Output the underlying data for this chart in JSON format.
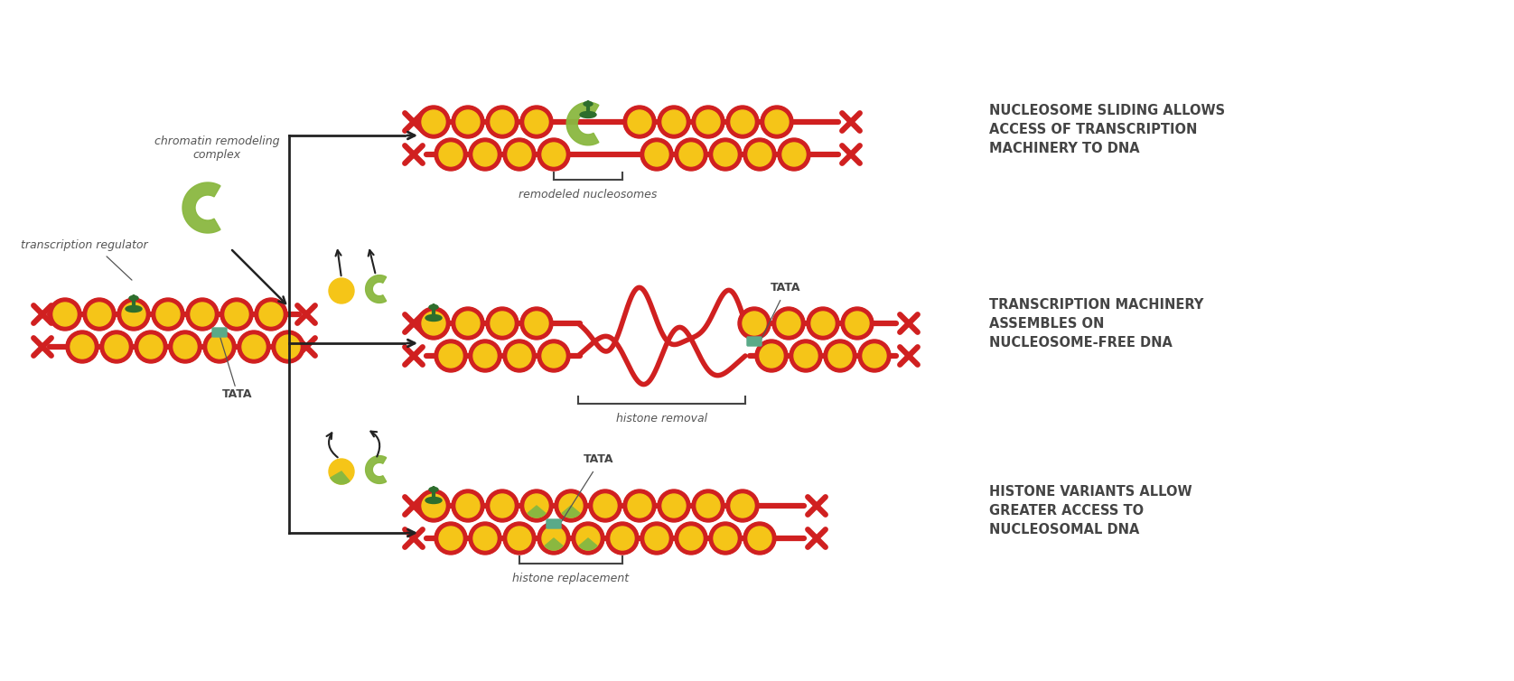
{
  "bg_color": "#ffffff",
  "red": "#d02020",
  "yellow": "#f5c518",
  "green": "#8ab840",
  "dark_green": "#2d6e2d",
  "teal": "#5aaa88",
  "text_gray": "#555555",
  "label_dark": "#444444",
  "arrow_color": "#222222",
  "text1": "NUCLEOSOME SLIDING ALLOWS\nACCESS OF TRANSCRIPTION\nMACHINERY TO DNA",
  "text2": "TRANSCRIPTION MACHINERY\nASSEMBLES ON\nNUCLEOSOME-FREE DNA",
  "text3": "HISTONE VARIANTS ALLOW\nGREATER ACCESS TO\nNUCLEOSOMAL DNA",
  "label_remodeled": "remodeled nucleosomes",
  "label_histone_removal": "histone removal",
  "label_histone_replacement": "histone replacement",
  "label_chromatin": "chromatin remodeling\ncomplex",
  "label_transcription_reg": "transcription regulator",
  "label_tata": "TATA"
}
